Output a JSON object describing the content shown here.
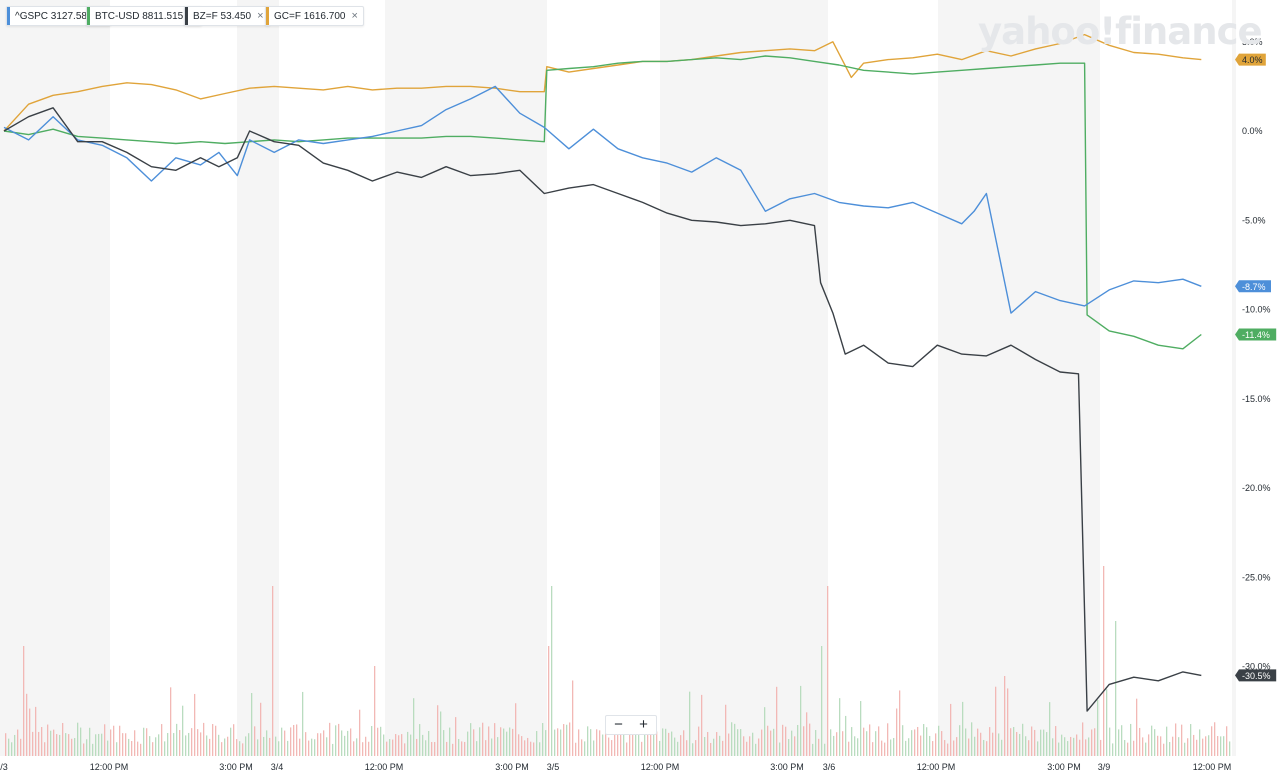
{
  "legend": [
    {
      "symbol": "^GSPC",
      "value": "3127.580",
      "color": "#4d8fd9"
    },
    {
      "symbol": "BTC-USD",
      "value": "8811.515",
      "color": "#4fad62"
    },
    {
      "symbol": "BZ=F",
      "value": "53.450",
      "color": "#3a4046"
    },
    {
      "symbol": "GC=F",
      "value": "1616.700",
      "color": "#e0a43a"
    }
  ],
  "close_glyph": "×",
  "logo": "yahoo!finance",
  "zoom": {
    "minus": "−",
    "plus": "+"
  },
  "chart_data": {
    "type": "line",
    "y_unit": "percent change",
    "ylim": [
      -35,
      7
    ],
    "y_ticks": [
      5,
      0,
      -5,
      -10,
      -15,
      -20,
      -25,
      -30
    ],
    "y_tick_labels": [
      "5.0%",
      "0.0%",
      "-5.0%",
      "-10.0%",
      "-15.0%",
      "-20.0%",
      "-25.0%",
      "-30.0%"
    ],
    "x_ticks": [
      "/3",
      "12:00 PM",
      "3:00 PM",
      "3/4",
      "12:00 PM",
      "3:00 PM",
      "3/5",
      "12:00 PM",
      "3:00 PM",
      "3/6",
      "12:00 PM",
      "3:00 PM",
      "3/9",
      "12:00 PM"
    ],
    "grid": false,
    "series": [
      {
        "name": "^GSPC",
        "color": "#4d8fd9",
        "last_label": "-8.7%",
        "x": [
          0,
          2,
          4,
          6,
          8,
          10,
          12,
          14,
          16,
          17.5,
          19,
          20,
          22,
          24,
          26,
          28,
          30,
          32,
          34,
          36,
          38,
          40,
          42,
          44,
          46,
          48,
          50,
          52,
          54,
          56,
          58,
          60,
          62,
          64,
          66,
          68,
          70,
          72,
          74,
          76,
          78,
          79,
          80,
          82,
          84,
          86,
          88,
          90,
          92,
          94,
          96,
          97.5
        ],
        "values": [
          0.2,
          -0.5,
          0.8,
          -0.5,
          -0.8,
          -1.5,
          -2.8,
          -1.5,
          -1.9,
          -1.2,
          -2.5,
          -0.5,
          -1.2,
          -0.5,
          -0.7,
          -0.5,
          -0.3,
          0.0,
          0.3,
          1.2,
          1.8,
          2.5,
          1.0,
          0.2,
          -1.0,
          0.1,
          -1.0,
          -1.5,
          -1.8,
          -2.3,
          -1.5,
          -2.2,
          -4.5,
          -3.8,
          -3.5,
          -4.0,
          -4.2,
          -4.3,
          -4.0,
          -4.6,
          -5.2,
          -4.5,
          -3.5,
          -10.2,
          -9.0,
          -9.5,
          -9.8,
          -8.9,
          -8.4,
          -8.5,
          -8.3,
          -8.7
        ]
      },
      {
        "name": "BTC-USD",
        "color": "#4fad62",
        "last_label": "-11.4%",
        "x": [
          0,
          2,
          4,
          6,
          8,
          10,
          12,
          14,
          16,
          18,
          20,
          22,
          24,
          26,
          28,
          30,
          32,
          34,
          36,
          38,
          40,
          42,
          44,
          44.2,
          46,
          48,
          50,
          52,
          54,
          56,
          58,
          60,
          62,
          64,
          66,
          68,
          70,
          72,
          74,
          76,
          78,
          80,
          82,
          84,
          86,
          88,
          88.2,
          90,
          92,
          94,
          96,
          97.5
        ],
        "values": [
          0.0,
          -0.2,
          0.1,
          -0.3,
          -0.4,
          -0.5,
          -0.6,
          -0.7,
          -0.6,
          -0.7,
          -0.6,
          -0.5,
          -0.6,
          -0.5,
          -0.4,
          -0.4,
          -0.4,
          -0.4,
          -0.3,
          -0.3,
          -0.4,
          -0.5,
          -0.6,
          3.4,
          3.5,
          3.6,
          3.8,
          3.9,
          3.9,
          4.0,
          4.1,
          4.0,
          4.2,
          4.1,
          3.9,
          3.7,
          3.4,
          3.3,
          3.2,
          3.3,
          3.4,
          3.5,
          3.6,
          3.7,
          3.8,
          3.8,
          -10.3,
          -11.2,
          -11.5,
          -12.0,
          -12.2,
          -11.4
        ]
      },
      {
        "name": "BZ=F",
        "color": "#3a4046",
        "last_label": "-30.5%",
        "x": [
          0,
          2,
          4,
          6,
          8,
          10,
          12,
          14,
          16,
          17.5,
          19,
          20,
          22,
          24,
          26,
          28,
          30,
          32,
          34,
          36,
          38,
          40,
          42,
          44,
          46,
          48,
          50,
          52,
          54,
          56,
          58,
          60,
          62,
          64,
          66,
          66.5,
          67.5,
          68.5,
          70,
          72,
          74,
          76,
          78,
          80,
          82,
          84,
          86,
          87.5,
          88.2,
          90,
          92,
          94,
          96,
          97.5
        ],
        "values": [
          0.0,
          0.8,
          1.3,
          -0.6,
          -0.6,
          -1.2,
          -2.0,
          -2.2,
          -1.5,
          -2.0,
          -1.5,
          0.0,
          -0.6,
          -0.8,
          -1.8,
          -2.2,
          -2.8,
          -2.3,
          -2.6,
          -2.0,
          -2.5,
          -2.4,
          -2.2,
          -3.5,
          -3.2,
          -3.0,
          -3.5,
          -4.0,
          -4.6,
          -5.0,
          -5.1,
          -5.3,
          -5.2,
          -5.0,
          -5.3,
          -8.5,
          -10.2,
          -12.5,
          -12.0,
          -13.0,
          -13.2,
          -12.0,
          -12.5,
          -12.6,
          -12.0,
          -12.8,
          -13.5,
          -13.6,
          -32.5,
          -31.0,
          -30.6,
          -30.8,
          -30.3,
          -30.5
        ]
      },
      {
        "name": "GC=F",
        "color": "#e0a43a",
        "last_label": "4.0%",
        "x": [
          0,
          2,
          4,
          6,
          8,
          10,
          12,
          14,
          16,
          18,
          20,
          22,
          24,
          26,
          28,
          30,
          32,
          34,
          36,
          38,
          40,
          42,
          44,
          44.2,
          46,
          48,
          50,
          52,
          54,
          56,
          58,
          60,
          62,
          64,
          66,
          67.5,
          69,
          70,
          72,
          74,
          76,
          78,
          80,
          82,
          84,
          86,
          88,
          90,
          92,
          94,
          96,
          97.5
        ],
        "values": [
          0.0,
          1.5,
          2.0,
          2.2,
          2.5,
          2.7,
          2.6,
          2.3,
          1.8,
          2.1,
          2.4,
          2.5,
          2.4,
          2.3,
          2.5,
          2.3,
          2.4,
          2.4,
          2.5,
          2.5,
          2.4,
          2.2,
          2.2,
          3.6,
          3.3,
          3.5,
          3.7,
          3.9,
          3.9,
          4.0,
          4.2,
          4.4,
          4.5,
          4.6,
          4.5,
          5.0,
          3.0,
          3.8,
          4.0,
          4.1,
          4.3,
          4.0,
          4.5,
          4.2,
          4.6,
          4.9,
          5.4,
          4.8,
          4.4,
          4.3,
          4.1,
          4.0
        ]
      }
    ]
  }
}
